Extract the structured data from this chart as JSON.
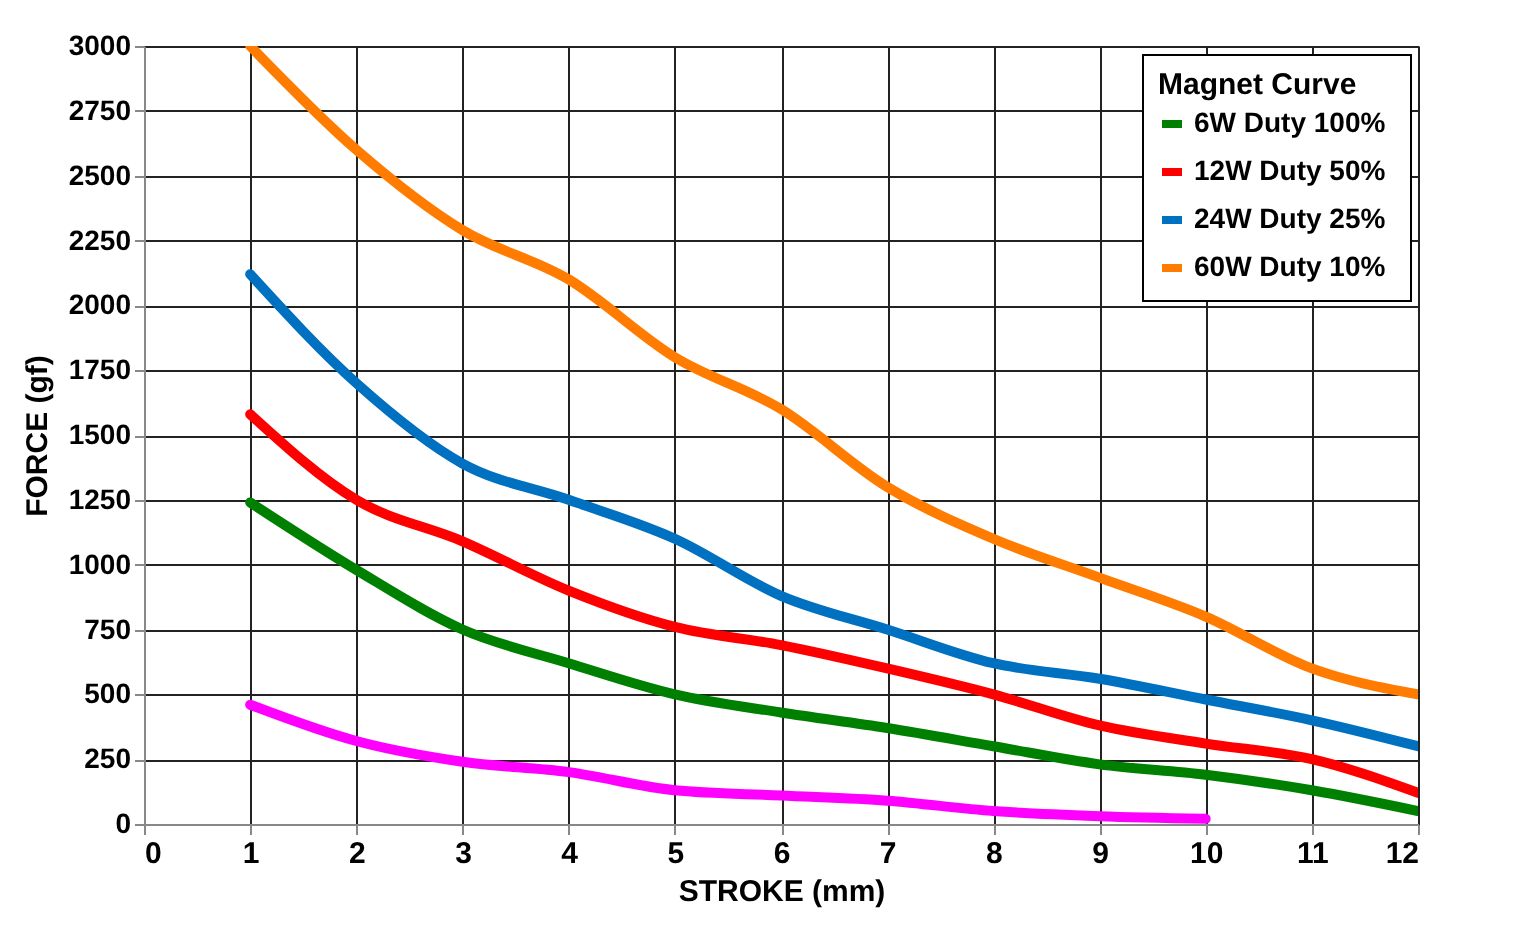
{
  "chart_data": {
    "type": "line",
    "xlabel": "STROKE (mm)",
    "ylabel": "FORCE (gf)",
    "legend_title": "Magnet Curve",
    "legend": "top right",
    "grid": true,
    "xlim": [
      0,
      12
    ],
    "xticks": [
      0,
      1,
      2,
      3,
      4,
      5,
      6,
      7,
      8,
      9,
      10,
      11,
      12
    ],
    "ylim": [
      0,
      3000
    ],
    "yticks": [
      0,
      250,
      500,
      750,
      1000,
      1250,
      1500,
      1750,
      2000,
      2250,
      2500,
      2750,
      3000
    ],
    "x": [
      1,
      2,
      3,
      4,
      5,
      6,
      7,
      8,
      9,
      10,
      11,
      12
    ],
    "series": [
      {
        "name": "6W Duty 100%",
        "color": "#008000",
        "values": [
          1240,
          980,
          750,
          620,
          500,
          430,
          370,
          300,
          230,
          190,
          130,
          50
        ]
      },
      {
        "name": "12W  Duty 50%",
        "color": "#ff0000",
        "values": [
          1580,
          1250,
          1090,
          900,
          760,
          690,
          600,
          500,
          380,
          310,
          250,
          120
        ]
      },
      {
        "name": "24W  Duty 25%",
        "color": "#0070c0",
        "values": [
          2120,
          1700,
          1390,
          1250,
          1100,
          880,
          750,
          620,
          560,
          480,
          400,
          300
        ]
      },
      {
        "name": "60W  Duty 10%",
        "color": "#ff7c00",
        "values": [
          3000,
          2600,
          2290,
          2100,
          1800,
          1600,
          1300,
          1100,
          950,
          800,
          600,
          500
        ]
      },
      {
        "color": "#ff00ff",
        "x": [
          1,
          2,
          3,
          4,
          5,
          6,
          7,
          8,
          9,
          10
        ],
        "values": [
          460,
          320,
          240,
          200,
          130,
          110,
          90,
          50,
          30,
          20
        ]
      }
    ]
  }
}
